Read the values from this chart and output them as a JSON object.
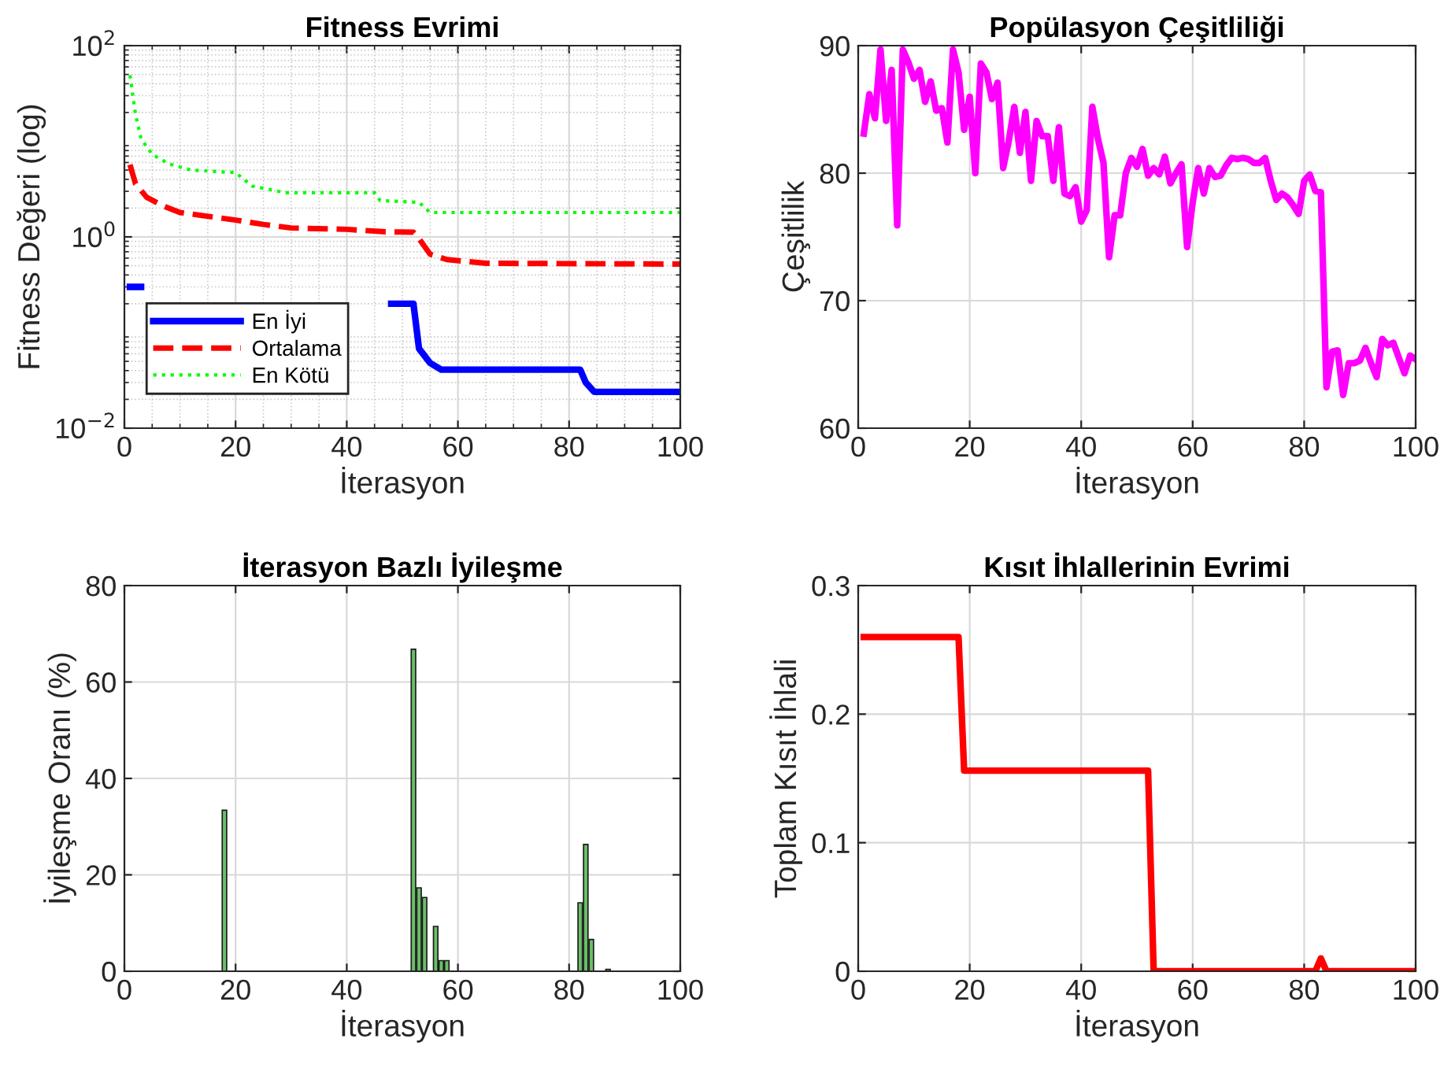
{
  "chart_data": [
    {
      "type": "line",
      "title": "Fitness Evrimi",
      "xlabel": "İterasyon",
      "ylabel": "Fitness Değeri (log)",
      "log": "y",
      "grid": true,
      "legend": "lower left",
      "xlim": [
        0,
        100
      ],
      "xticks": [
        0,
        20,
        40,
        60,
        80,
        100
      ],
      "ylim": [
        0.01,
        100
      ],
      "yticks": [
        {
          "value": 0.01,
          "label": "10$^{−2}$"
        },
        {
          "value": 1,
          "label": "10$^{0}$"
        },
        {
          "value": 100,
          "label": "10$^{2}$"
        }
      ],
      "series": [
        {
          "name": "En İyi",
          "color": "#0000ff",
          "line_style": "solid",
          "x": [
            1,
            3,
            4,
            48,
            51,
            52,
            53,
            55,
            57,
            82,
            83,
            84.5,
            100
          ],
          "values": [
            0.3,
            0.3,
            null,
            0.2,
            0.2,
            0.2,
            0.068,
            0.048,
            0.041,
            0.041,
            0.03,
            0.024,
            0.024
          ]
        },
        {
          "name": "Ortalama",
          "color": "#ff0000",
          "line_style": "dashed",
          "x": [
            1,
            2,
            4,
            7,
            10,
            20,
            25,
            30,
            40,
            47,
            52,
            53,
            55,
            58,
            65,
            100
          ],
          "values": [
            5.7,
            3.6,
            2.6,
            2.1,
            1.8,
            1.5,
            1.35,
            1.24,
            1.2,
            1.13,
            1.12,
            0.96,
            0.66,
            0.58,
            0.53,
            0.52
          ]
        },
        {
          "name": "En Kötü",
          "color": "#00ff00",
          "line_style": "dotted",
          "x": [
            1,
            2,
            3,
            5,
            8,
            12,
            20,
            23,
            29,
            45,
            46,
            53,
            55,
            100
          ],
          "values": [
            49,
            19,
            10.6,
            7.3,
            5.8,
            5.0,
            4.7,
            3.4,
            2.9,
            2.9,
            2.4,
            2.3,
            1.8,
            1.8
          ]
        }
      ]
    },
    {
      "type": "line",
      "title": "Popülasyon Çeşitliliği",
      "xlabel": "İterasyon",
      "ylabel": "Çeşitlilik",
      "grid": true,
      "xlim": [
        0,
        100
      ],
      "xticks": [
        0,
        20,
        40,
        60,
        80,
        100
      ],
      "ylim": [
        60,
        90
      ],
      "yticks": [
        60,
        70,
        80,
        90
      ],
      "series": [
        {
          "color": "#ff00ff",
          "line_style": "solid",
          "x": [
            1,
            2,
            3,
            4,
            5,
            6,
            7,
            8,
            9,
            10,
            11,
            12,
            13,
            14,
            15,
            16,
            17,
            18,
            19,
            20,
            21,
            22,
            23,
            24,
            25,
            26,
            27,
            28,
            29,
            30,
            31,
            32,
            33,
            34,
            35,
            36,
            37,
            38,
            39,
            40,
            41,
            42,
            43,
            44,
            45,
            46,
            47,
            48,
            49,
            50,
            51,
            52,
            53,
            54,
            55,
            56,
            57,
            58,
            59,
            60,
            61,
            62,
            63,
            64,
            65,
            66,
            67,
            68,
            69,
            70,
            71,
            72,
            73,
            74,
            75,
            76,
            77,
            78,
            79,
            80,
            81,
            82,
            83,
            84,
            85,
            86,
            87,
            88,
            89,
            90,
            91,
            92,
            93,
            94,
            95,
            96,
            97,
            98,
            99,
            100
          ],
          "values": [
            83.1,
            86.2,
            84.3,
            89.7,
            84.1,
            88.1,
            75.9,
            89.7,
            88.7,
            87.4,
            88.1,
            85.6,
            87.2,
            84.9,
            85.1,
            82.4,
            89.7,
            87.9,
            83.4,
            86.0,
            80.0,
            88.6,
            87.9,
            85.8,
            87.1,
            80.4,
            82.5,
            85.2,
            81.6,
            84.8,
            79.4,
            84.1,
            82.9,
            82.9,
            79.4,
            83.6,
            78.4,
            78.2,
            78.9,
            76.2,
            77.1,
            85.2,
            82.7,
            80.8,
            73.4,
            76.7,
            76.7,
            80.0,
            81.2,
            80.5,
            81.9,
            79.8,
            80.4,
            79.9,
            81.3,
            79.2,
            80.0,
            80.7,
            74.2,
            77.7,
            80.4,
            78.4,
            80.4,
            79.7,
            79.8,
            80.6,
            81.2,
            81.1,
            81.2,
            81.1,
            80.8,
            80.8,
            81.2,
            79.4,
            77.9,
            78.4,
            78.1,
            77.5,
            76.8,
            79.4,
            79.9,
            78.6,
            78.5,
            63.2,
            66.0,
            66.1,
            62.6,
            65.1,
            65.1,
            65.3,
            66.3,
            65.1,
            64.0,
            67.0,
            66.5,
            66.7,
            65.5,
            64.3,
            65.7,
            65.4
          ]
        }
      ]
    },
    {
      "type": "bar",
      "title": "İterasyon Bazlı İyileşme",
      "xlabel": "İterasyon",
      "ylabel": "İyileşme Oranı (%)",
      "grid": true,
      "xlim": [
        0,
        100
      ],
      "xticks": [
        0,
        20,
        40,
        60,
        80,
        100
      ],
      "ylim": [
        0,
        80
      ],
      "yticks": [
        0,
        20,
        40,
        60,
        80
      ],
      "x": [
        1,
        2,
        3,
        4,
        5,
        6,
        7,
        8,
        9,
        10,
        11,
        12,
        13,
        14,
        15,
        16,
        17,
        18,
        19,
        20,
        21,
        22,
        23,
        24,
        25,
        26,
        27,
        28,
        29,
        30,
        31,
        32,
        33,
        34,
        35,
        36,
        37,
        38,
        39,
        40,
        41,
        42,
        43,
        44,
        45,
        46,
        47,
        48,
        49,
        50,
        51,
        52,
        53,
        54,
        55,
        56,
        57,
        58,
        59,
        60,
        61,
        62,
        63,
        64,
        65,
        66,
        67,
        68,
        69,
        70,
        71,
        72,
        73,
        74,
        75,
        76,
        77,
        78,
        79,
        80,
        81,
        82,
        83,
        84,
        85,
        86,
        87,
        88,
        89,
        90,
        91,
        92,
        93,
        94,
        95,
        96,
        97,
        98,
        99,
        100
      ],
      "series": [
        {
          "color": "#6abf69",
          "values": [
            0,
            0,
            0,
            0,
            0,
            0,
            0,
            0,
            0,
            0,
            0,
            0,
            0,
            0,
            0,
            0,
            0,
            33.4,
            0,
            0,
            0,
            0,
            0,
            0,
            0,
            0,
            0,
            0,
            0,
            0,
            0,
            0,
            0,
            0,
            0,
            0,
            0,
            0,
            0,
            0,
            0,
            0,
            0,
            0,
            0,
            0,
            0,
            0,
            0,
            0,
            0,
            66.8,
            17.3,
            15.3,
            0,
            9.3,
            2.2,
            2.2,
            0,
            0,
            0,
            0,
            0,
            0,
            0,
            0,
            0,
            0,
            0,
            0,
            0,
            0,
            0,
            0,
            0,
            0,
            0,
            0,
            0,
            0,
            0,
            14.2,
            26.3,
            6.6,
            0,
            0,
            0.4,
            0,
            0,
            0,
            0,
            0,
            0,
            0,
            0,
            0,
            0,
            0,
            0,
            0
          ]
        }
      ]
    },
    {
      "type": "line",
      "title": "Kısıt İhlallerinin Evrimi",
      "xlabel": "İterasyon",
      "ylabel": "Toplam Kısıt İhlali",
      "grid": true,
      "xlim": [
        0,
        100
      ],
      "xticks": [
        0,
        20,
        40,
        60,
        80,
        100
      ],
      "ylim": [
        0,
        0.3
      ],
      "yticks": [
        0,
        0.1,
        0.2,
        0.3
      ],
      "series": [
        {
          "color": "#ff0000",
          "line_style": "solid",
          "x": [
            1,
            18,
            19,
            52,
            53,
            82,
            83,
            84,
            100
          ],
          "values": [
            0.26,
            0.26,
            0.156,
            0.156,
            0,
            0,
            0.01,
            0,
            0
          ]
        }
      ]
    }
  ]
}
